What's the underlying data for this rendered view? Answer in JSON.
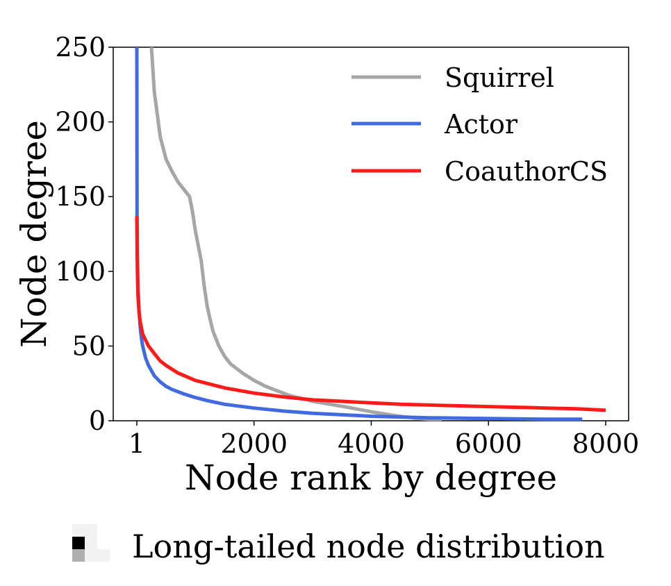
{
  "chart_data": {
    "type": "line",
    "title": "",
    "xlabel": "Node rank by degree",
    "ylabel": "Node degree",
    "xlim": [
      1,
      8400
    ],
    "ylim": [
      0,
      250
    ],
    "xticks": [
      1,
      2000,
      4000,
      6000,
      8000
    ],
    "xtick_labels": [
      "1",
      "2000",
      "4000",
      "6000",
      "8000"
    ],
    "yticks": [
      0,
      50,
      100,
      150,
      200,
      250
    ],
    "ytick_labels": [
      "0",
      "50",
      "100",
      "150",
      "200",
      "250"
    ],
    "grid": false,
    "legend_position": "top-right",
    "series": [
      {
        "name": "Squirrel",
        "color": "#a6a6a6",
        "x": [
          250,
          300,
          400,
          500,
          600,
          700,
          800,
          900,
          950,
          1000,
          1050,
          1100,
          1150,
          1200,
          1250,
          1300,
          1400,
          1500,
          1600,
          1800,
          2000,
          2200,
          2400,
          2600,
          2800,
          3000,
          3300,
          3600,
          4000,
          4400,
          4800,
          5000,
          5200
        ],
        "values": [
          250,
          220,
          190,
          175,
          167,
          160,
          155,
          150,
          140,
          127,
          117,
          107,
          90,
          77,
          68,
          60,
          50,
          43,
          38,
          32,
          27,
          23,
          20,
          17,
          15,
          13,
          11,
          9,
          6,
          3.5,
          1.5,
          1,
          1
        ]
      },
      {
        "name": "Actor",
        "color": "#4169e1",
        "x": [
          1,
          5,
          10,
          20,
          40,
          60,
          80,
          100,
          150,
          200,
          300,
          400,
          500,
          600,
          800,
          1000,
          1200,
          1500,
          2000,
          2500,
          3000,
          3500,
          4000,
          4500,
          5000,
          6000,
          7000,
          7600
        ],
        "values": [
          250,
          137,
          110,
          90,
          72,
          62,
          55,
          50,
          42,
          37,
          30,
          26,
          23,
          21,
          18,
          15.5,
          13.5,
          11,
          8.5,
          6.5,
          5,
          4,
          3,
          2.5,
          2,
          1.5,
          1,
          1
        ]
      },
      {
        "name": "CoauthorCS",
        "color": "#ff1a1a",
        "x": [
          1,
          10,
          20,
          40,
          60,
          80,
          100,
          150,
          200,
          300,
          400,
          500,
          700,
          1000,
          1500,
          2000,
          2500,
          3000,
          3500,
          4000,
          4500,
          5000,
          5500,
          6000,
          6500,
          7000,
          7500,
          8000
        ],
        "values": [
          137,
          100,
          84,
          72,
          66,
          62,
          58,
          54,
          50,
          45,
          40,
          37,
          32,
          27,
          22,
          18.5,
          16,
          14,
          13,
          12,
          11,
          10.5,
          10,
          9.5,
          9,
          8.5,
          8,
          7
        ]
      }
    ]
  },
  "caption": {
    "text": "Long-tailed node distribution",
    "icon_colors": [
      "#000000",
      "#b0b0b0",
      "#f2f2f2"
    ]
  }
}
